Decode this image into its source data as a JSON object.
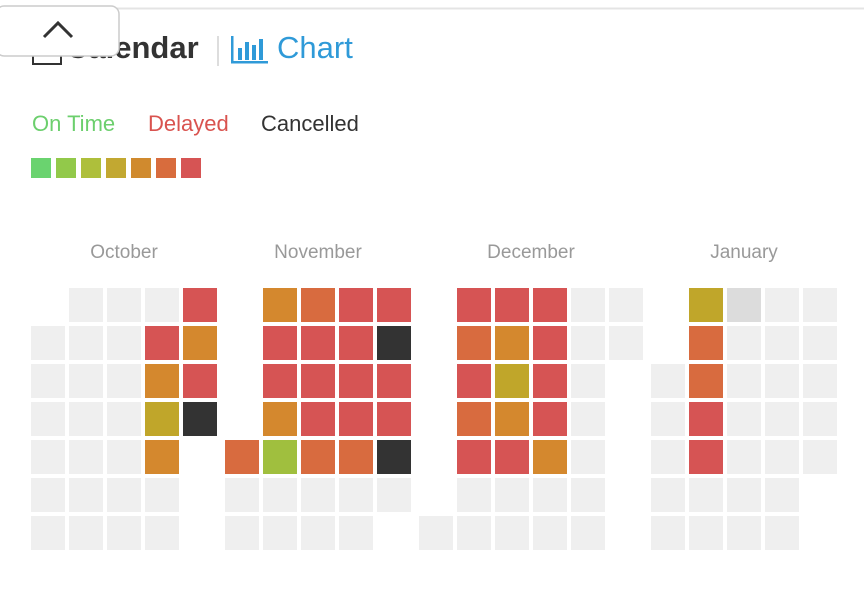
{
  "header": {
    "tab_calendar": "Calendar",
    "tab_chart": "Chart"
  },
  "legend": {
    "labels": [
      {
        "text": "On Time",
        "color": "#6ccf6d"
      },
      {
        "text": "Delayed",
        "color": "#d9534f"
      },
      {
        "text": "Cancelled",
        "color": "#333333"
      }
    ],
    "scale": [
      "#6ad36f",
      "#92c94a",
      "#aebf3b",
      "#c2a831",
      "#d08a2e",
      "#d86c3d",
      "#d65454"
    ]
  },
  "months": [
    {
      "name": "October",
      "weeks": [
        [
          null,
          "#efefef",
          "#efefef",
          "#efefef",
          "#efefef",
          "#efefef",
          "#efefef"
        ],
        [
          "#efefef",
          "#efefef",
          "#efefef",
          "#efefef",
          "#efefef",
          "#efefef",
          "#efefef"
        ],
        [
          "#efefef",
          "#efefef",
          "#efefef",
          "#efefef",
          "#efefef",
          "#efefef",
          "#efefef"
        ],
        [
          "#efefef",
          "#d65454",
          "#d4882e",
          "#c0a62a",
          "#d4882e",
          "#efefef",
          "#efefef"
        ],
        [
          "#d65454",
          "#d4882e",
          "#d65454",
          "#333333",
          null,
          null,
          null
        ]
      ]
    },
    {
      "name": "November",
      "weeks": [
        [
          null,
          null,
          null,
          null,
          "#d86b3f",
          "#efefef",
          "#efefef"
        ],
        [
          "#d4882e",
          "#d65454",
          "#d65454",
          "#d4882e",
          "#a0bf3e",
          "#efefef",
          "#efefef"
        ],
        [
          "#d86b3f",
          "#d65454",
          "#d65454",
          "#d65454",
          "#d86b3f",
          "#efefef",
          "#efefef"
        ],
        [
          "#d65454",
          "#d65454",
          "#d65454",
          "#d65454",
          "#d86b3f",
          "#efefef",
          "#efefef"
        ],
        [
          "#d65454",
          "#333333",
          "#d65454",
          "#d65454",
          "#333333",
          "#efefef",
          null
        ]
      ]
    },
    {
      "name": "December",
      "weeks": [
        [
          null,
          null,
          null,
          null,
          null,
          null,
          "#efefef"
        ],
        [
          "#d65454",
          "#d86b3f",
          "#d65454",
          "#d86b3f",
          "#d65454",
          "#efefef",
          "#efefef"
        ],
        [
          "#d65454",
          "#d4882e",
          "#c0a62a",
          "#d4882e",
          "#d65454",
          "#efefef",
          "#efefef"
        ],
        [
          "#d65454",
          "#d65454",
          "#d65454",
          "#d65454",
          "#d4882e",
          "#efefef",
          "#efefef"
        ],
        [
          "#efefef",
          "#efefef",
          "#efefef",
          "#efefef",
          "#efefef",
          "#efefef",
          "#efefef"
        ],
        [
          "#efefef",
          "#efefef",
          null,
          null,
          null,
          null,
          null
        ]
      ]
    },
    {
      "name": "January",
      "weeks": [
        [
          null,
          null,
          "#efefef",
          "#efefef",
          "#efefef",
          "#efefef",
          "#efefef"
        ],
        [
          "#c0a62a",
          "#d86b3f",
          "#d86b3f",
          "#d65454",
          "#d65454",
          "#efefef",
          "#efefef"
        ],
        [
          "#dcdcdc",
          "#efefef",
          "#efefef",
          "#efefef",
          "#efefef",
          "#efefef",
          "#efefef"
        ],
        [
          "#efefef",
          "#efefef",
          "#efefef",
          "#efefef",
          "#efefef",
          "#efefef",
          "#efefef"
        ],
        [
          "#efefef",
          "#efefef",
          "#efefef",
          "#efefef",
          "#efefef",
          null,
          null
        ]
      ]
    }
  ]
}
